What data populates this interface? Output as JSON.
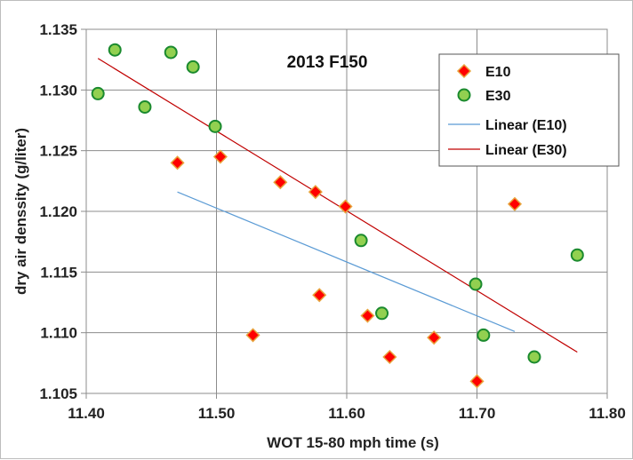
{
  "chart_data": {
    "type": "scatter",
    "title": "2013 F150",
    "xlabel": "WOT 15-80 mph time (s)",
    "ylabel": "dry air denssity (g/liter)",
    "xlim": [
      11.4,
      11.8
    ],
    "ylim": [
      1.105,
      1.135
    ],
    "xticks": [
      "11.40",
      "11.50",
      "11.60",
      "11.70",
      "11.80"
    ],
    "yticks": [
      "1.105",
      "1.110",
      "1.115",
      "1.120",
      "1.125",
      "1.130",
      "1.135"
    ],
    "grid": true,
    "legend_position": "top-right",
    "series": [
      {
        "name": "E10",
        "marker": "diamond",
        "color": "#ff0000",
        "edge_color": "#e8a33c",
        "points": [
          [
            11.47,
            1.124
          ],
          [
            11.503,
            1.1245
          ],
          [
            11.528,
            1.1098
          ],
          [
            11.549,
            1.1224
          ],
          [
            11.576,
            1.1216
          ],
          [
            11.579,
            1.1131
          ],
          [
            11.599,
            1.1204
          ],
          [
            11.616,
            1.1114
          ],
          [
            11.633,
            1.108
          ],
          [
            11.667,
            1.1096
          ],
          [
            11.7,
            1.106
          ],
          [
            11.729,
            1.1206
          ]
        ]
      },
      {
        "name": "E30",
        "marker": "circle",
        "color": "#92d050",
        "edge_color": "#1a8a2e",
        "points": [
          [
            11.409,
            1.1297
          ],
          [
            11.422,
            1.1333
          ],
          [
            11.445,
            1.1286
          ],
          [
            11.465,
            1.1331
          ],
          [
            11.482,
            1.1319
          ],
          [
            11.499,
            1.127
          ],
          [
            11.611,
            1.1176
          ],
          [
            11.627,
            1.1116
          ],
          [
            11.699,
            1.114
          ],
          [
            11.705,
            1.1098
          ],
          [
            11.744,
            1.108
          ],
          [
            11.777,
            1.1164
          ]
        ]
      }
    ],
    "trendlines": [
      {
        "name": "Linear (E10)",
        "color": "#5b9bd5",
        "x": [
          11.47,
          11.729
        ],
        "y": [
          1.1216,
          1.1101
        ]
      },
      {
        "name": "Linear (E30)",
        "color": "#c00000",
        "x": [
          11.409,
          11.777
        ],
        "y": [
          1.1326,
          1.1084
        ]
      }
    ]
  }
}
